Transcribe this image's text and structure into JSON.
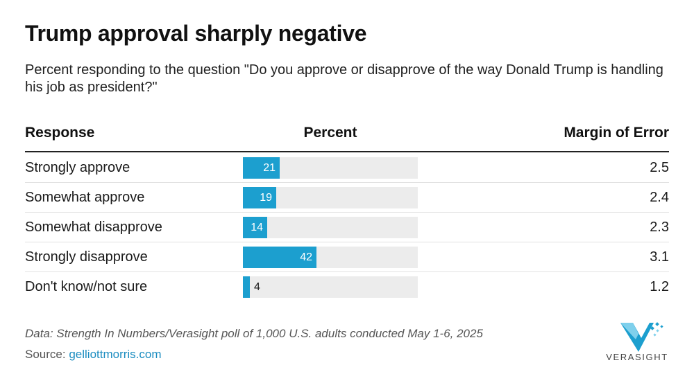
{
  "title": "Trump approval sharply negative",
  "subtitle": "Percent responding to the question \"Do you approve or disapprove of the way Donald Trump is handling his job as president?\"",
  "headers": {
    "response": "Response",
    "percent": "Percent",
    "moe": "Margin of Error"
  },
  "chart_data": {
    "type": "table",
    "columns": [
      "Response",
      "Percent",
      "Margin of Error"
    ],
    "scale_max": 100,
    "bar_color": "#1c9fcf",
    "track_color": "#ececec",
    "rows": [
      {
        "response": "Strongly approve",
        "percent": 21,
        "moe": "2.5"
      },
      {
        "response": "Somewhat approve",
        "percent": 19,
        "moe": "2.4"
      },
      {
        "response": "Somewhat disapprove",
        "percent": 14,
        "moe": "2.3"
      },
      {
        "response": "Strongly disapprove",
        "percent": 42,
        "moe": "3.1"
      },
      {
        "response": "Don't know/not sure",
        "percent": 4,
        "moe": "1.2"
      }
    ]
  },
  "footer": {
    "note": "Data: Strength In Numbers/Verasight poll of 1,000 U.S. adults conducted May 1-6, 2025",
    "source_label": "Source:",
    "source_link": "gelliottmorris.com"
  },
  "logo": {
    "name": "verasight-logo-icon",
    "text": "VERASIGHT",
    "color": "#1c9fcf"
  }
}
